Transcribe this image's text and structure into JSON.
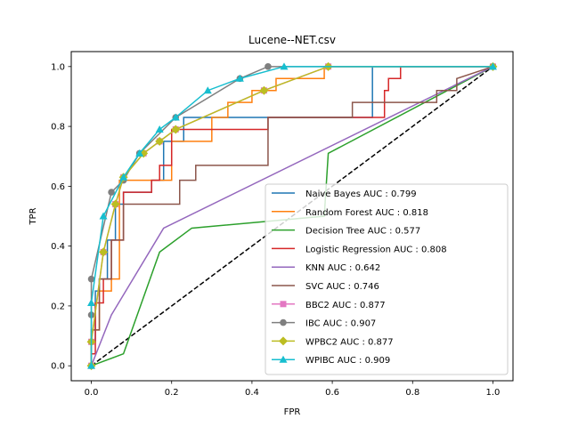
{
  "chart_data": {
    "type": "line",
    "title": "Lucene--NET.csv",
    "xlabel": "FPR",
    "ylabel": "TPR",
    "xlim": [
      -0.05,
      1.05
    ],
    "ylim": [
      -0.05,
      1.05
    ],
    "xticks": [
      "0.0",
      "0.2",
      "0.4",
      "0.6",
      "0.8",
      "1.0"
    ],
    "yticks": [
      "0.0",
      "0.2",
      "0.4",
      "0.6",
      "0.8",
      "1.0"
    ],
    "grid": false,
    "legend_position": "lower-right",
    "diagonal": {
      "x": [
        0,
        1
      ],
      "y": [
        0,
        1
      ],
      "color": "#000000",
      "style": "dashed"
    },
    "series": [
      {
        "name": "Naive Bayes AUC : 0.799",
        "color": "#1f77b4",
        "marker": "none",
        "x": [
          0,
          0,
          0.01,
          0.01,
          0.02,
          0.02,
          0.04,
          0.04,
          0.06,
          0.06,
          0.08,
          0.08,
          0.15,
          0.15,
          0.18,
          0.18,
          0.23,
          0.23,
          0.7,
          0.7,
          1
        ],
        "y": [
          0,
          0.08,
          0.08,
          0.25,
          0.25,
          0.29,
          0.29,
          0.42,
          0.42,
          0.54,
          0.54,
          0.58,
          0.58,
          0.62,
          0.62,
          0.75,
          0.75,
          0.83,
          0.83,
          1,
          1
        ]
      },
      {
        "name": "Random Forest AUC : 0.818",
        "color": "#ff7f0e",
        "marker": "none",
        "x": [
          0,
          0,
          0.02,
          0.02,
          0.05,
          0.05,
          0.07,
          0.07,
          0.2,
          0.2,
          0.3,
          0.3,
          0.34,
          0.34,
          0.4,
          0.4,
          0.46,
          0.46,
          0.53,
          0.53,
          0.58,
          0.58,
          1
        ],
        "y": [
          0,
          0.12,
          0.12,
          0.25,
          0.25,
          0.29,
          0.29,
          0.62,
          0.62,
          0.75,
          0.75,
          0.83,
          0.83,
          0.88,
          0.88,
          0.92,
          0.92,
          0.96,
          0.96,
          0.96,
          0.96,
          1,
          1
        ]
      },
      {
        "name": "Decision Tree AUC : 0.577",
        "color": "#2ca02c",
        "marker": "none",
        "x": [
          0,
          0.08,
          0.17,
          0.25,
          0.58,
          0.59,
          1
        ],
        "y": [
          0,
          0.04,
          0.38,
          0.46,
          0.5,
          0.71,
          1
        ]
      },
      {
        "name": "Logistic Regression AUC : 0.808",
        "color": "#d62728",
        "marker": "none",
        "x": [
          0,
          0,
          0.01,
          0.01,
          0.03,
          0.03,
          0.05,
          0.05,
          0.08,
          0.08,
          0.15,
          0.15,
          0.17,
          0.17,
          0.2,
          0.2,
          0.44,
          0.44,
          0.73,
          0.73,
          0.74,
          0.74,
          0.77,
          0.77,
          1
        ],
        "y": [
          0,
          0.04,
          0.04,
          0.21,
          0.21,
          0.29,
          0.29,
          0.42,
          0.42,
          0.58,
          0.58,
          0.62,
          0.62,
          0.67,
          0.67,
          0.79,
          0.79,
          0.83,
          0.83,
          0.92,
          0.92,
          0.96,
          0.96,
          1,
          1
        ]
      },
      {
        "name": "KNN AUC : 0.642",
        "color": "#9467bd",
        "marker": "none",
        "x": [
          0,
          0.05,
          0.18,
          1
        ],
        "y": [
          0,
          0.17,
          0.46,
          1
        ]
      },
      {
        "name": "SVC AUC : 0.746",
        "color": "#8c564b",
        "marker": "none",
        "x": [
          0,
          0,
          0.02,
          0.02,
          0.05,
          0.05,
          0.08,
          0.08,
          0.22,
          0.22,
          0.26,
          0.26,
          0.44,
          0.44,
          0.65,
          0.65,
          0.86,
          0.86,
          0.91,
          0.91,
          1
        ],
        "y": [
          0,
          0.12,
          0.12,
          0.29,
          0.29,
          0.42,
          0.42,
          0.54,
          0.54,
          0.62,
          0.62,
          0.67,
          0.67,
          0.83,
          0.83,
          0.88,
          0.88,
          0.92,
          0.92,
          0.96,
          1
        ]
      },
      {
        "name": "BBC2 AUC : 0.877",
        "color": "#e377c2",
        "marker": "square",
        "x": [
          0,
          0.0,
          0.03,
          0.06,
          0.08,
          0.13,
          0.17,
          0.21,
          0.43,
          0.59,
          1
        ],
        "y": [
          0,
          0.08,
          0.38,
          0.54,
          0.63,
          0.71,
          0.75,
          0.79,
          0.92,
          1,
          1
        ]
      },
      {
        "name": "IBC AUC : 0.907",
        "color": "#7f7f7f",
        "marker": "circle",
        "x": [
          0,
          0.0,
          0.0,
          0.05,
          0.08,
          0.12,
          0.21,
          0.37,
          0.44,
          1
        ],
        "y": [
          0,
          0.17,
          0.29,
          0.58,
          0.62,
          0.71,
          0.83,
          0.96,
          1,
          1
        ]
      },
      {
        "name": "WPBC2 AUC : 0.877",
        "color": "#bcbd22",
        "marker": "diamond",
        "x": [
          0,
          0.0,
          0.03,
          0.06,
          0.08,
          0.13,
          0.17,
          0.21,
          0.43,
          0.59,
          1
        ],
        "y": [
          0,
          0.08,
          0.38,
          0.54,
          0.63,
          0.71,
          0.75,
          0.79,
          0.92,
          1,
          1
        ]
      },
      {
        "name": "WPIBC AUC : 0.909",
        "color": "#17becf",
        "marker": "triangle",
        "x": [
          0,
          0.0,
          0.03,
          0.08,
          0.12,
          0.17,
          0.21,
          0.29,
          0.37,
          0.48,
          1
        ],
        "y": [
          0,
          0.21,
          0.5,
          0.63,
          0.71,
          0.79,
          0.83,
          0.92,
          0.96,
          1,
          1
        ]
      }
    ]
  }
}
